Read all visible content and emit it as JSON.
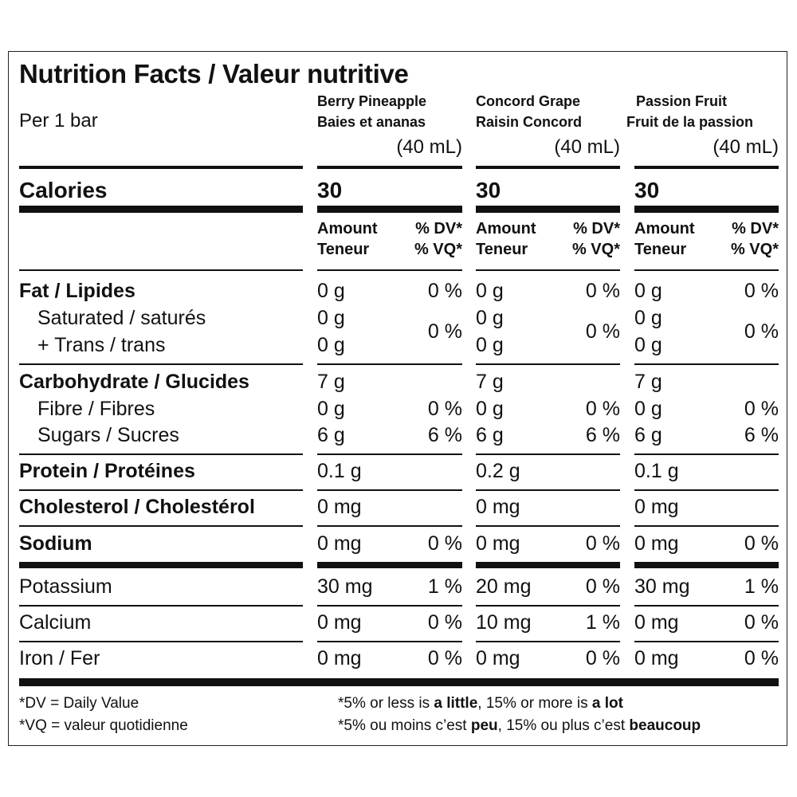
{
  "title": "Nutrition Facts / Valeur nutritive",
  "serving": "Per 1 bar",
  "products": [
    {
      "name_en": "Berry Pineapple",
      "name_fr": "Baies et ananas",
      "size": "(40 mL)",
      "calories": "30"
    },
    {
      "name_en": "Concord Grape",
      "name_fr": "Raisin Concord",
      "size": "(40 mL)",
      "calories": "30"
    },
    {
      "name_en": "Passion Fruit",
      "name_fr": "Fruit de la passion",
      "size": "(40 mL)",
      "calories": "30"
    }
  ],
  "calories_label": "Calories",
  "column_headers": {
    "amount": "Amount",
    "teneur": "Teneur",
    "dv": "% DV*",
    "vq": "% VQ*"
  },
  "rows": [
    {
      "key": "fat",
      "label": "Fat / Lipides",
      "bold": true,
      "indent": false,
      "values": [
        {
          "amount": "0 g",
          "dv": "0 %"
        },
        {
          "amount": "0 g",
          "dv": "0 %"
        },
        {
          "amount": "0 g",
          "dv": "0 %"
        }
      ]
    },
    {
      "key": "saturated",
      "label": "Saturated / saturés",
      "bold": false,
      "indent": true,
      "values": [
        {
          "amount": "0 g"
        },
        {
          "amount": "0 g"
        },
        {
          "amount": "0 g"
        }
      ]
    },
    {
      "key": "trans",
      "label": "+ Trans / trans",
      "bold": false,
      "indent": true,
      "values": [
        {
          "amount": "0 g"
        },
        {
          "amount": "0 g"
        },
        {
          "amount": "0 g"
        }
      ]
    },
    {
      "key": "carbohydrate",
      "label": "Carbohydrate / Glucides",
      "bold": true,
      "indent": false,
      "values": [
        {
          "amount": "7 g"
        },
        {
          "amount": "7 g"
        },
        {
          "amount": "7 g"
        }
      ]
    },
    {
      "key": "fibre",
      "label": "Fibre / Fibres",
      "bold": false,
      "indent": true,
      "values": [
        {
          "amount": "0 g",
          "dv": "0 %"
        },
        {
          "amount": "0 g",
          "dv": "0 %"
        },
        {
          "amount": "0 g",
          "dv": "0 %"
        }
      ]
    },
    {
      "key": "sugars",
      "label": "Sugars / Sucres",
      "bold": false,
      "indent": true,
      "values": [
        {
          "amount": "6 g",
          "dv": "6 %"
        },
        {
          "amount": "6 g",
          "dv": "6 %"
        },
        {
          "amount": "6 g",
          "dv": "6 %"
        }
      ]
    },
    {
      "key": "protein",
      "label": "Protein / Protéines",
      "bold": true,
      "indent": false,
      "values": [
        {
          "amount": "0.1 g"
        },
        {
          "amount": "0.2 g"
        },
        {
          "amount": "0.1 g"
        }
      ]
    },
    {
      "key": "cholesterol",
      "label": "Cholesterol / Cholestérol",
      "bold": true,
      "indent": false,
      "values": [
        {
          "amount": "0 mg"
        },
        {
          "amount": "0 mg"
        },
        {
          "amount": "0 mg"
        }
      ]
    },
    {
      "key": "sodium",
      "label": "Sodium",
      "bold": true,
      "indent": false,
      "values": [
        {
          "amount": "0 mg",
          "dv": "0 %"
        },
        {
          "amount": "0 mg",
          "dv": "0 %"
        },
        {
          "amount": "0 mg",
          "dv": "0 %"
        }
      ]
    },
    {
      "key": "potassium",
      "label": "Potassium",
      "bold": false,
      "indent": false,
      "values": [
        {
          "amount": "30 mg",
          "dv": "1 %"
        },
        {
          "amount": "20 mg",
          "dv": "0 %"
        },
        {
          "amount": "30 mg",
          "dv": "1 %"
        }
      ]
    },
    {
      "key": "calcium",
      "label": "Calcium",
      "bold": false,
      "indent": false,
      "values": [
        {
          "amount": "0 mg",
          "dv": "0 %"
        },
        {
          "amount": "10 mg",
          "dv": "1 %"
        },
        {
          "amount": "0 mg",
          "dv": "0 %"
        }
      ]
    },
    {
      "key": "iron",
      "label": "Iron / Fer",
      "bold": false,
      "indent": false,
      "values": [
        {
          "amount": "0 mg",
          "dv": "0 %"
        },
        {
          "amount": "0 mg",
          "dv": "0 %"
        },
        {
          "amount": "0 mg",
          "dv": "0 %"
        }
      ]
    }
  ],
  "sat_trans_dv": [
    "0 %",
    "0 %",
    "0 %"
  ],
  "footer": {
    "dv_def": "*DV = Daily Value",
    "vq_def": "*VQ = valeur quotidienne",
    "en": {
      "pre": "*5% or less is ",
      "b1": "a little",
      "mid": ", 15% or more is ",
      "b2": "a lot"
    },
    "fr": {
      "pre": "*5% ou moins c’est ",
      "b1": "peu",
      "mid": ", 15% ou plus c’est ",
      "b2": "beaucoup"
    }
  }
}
